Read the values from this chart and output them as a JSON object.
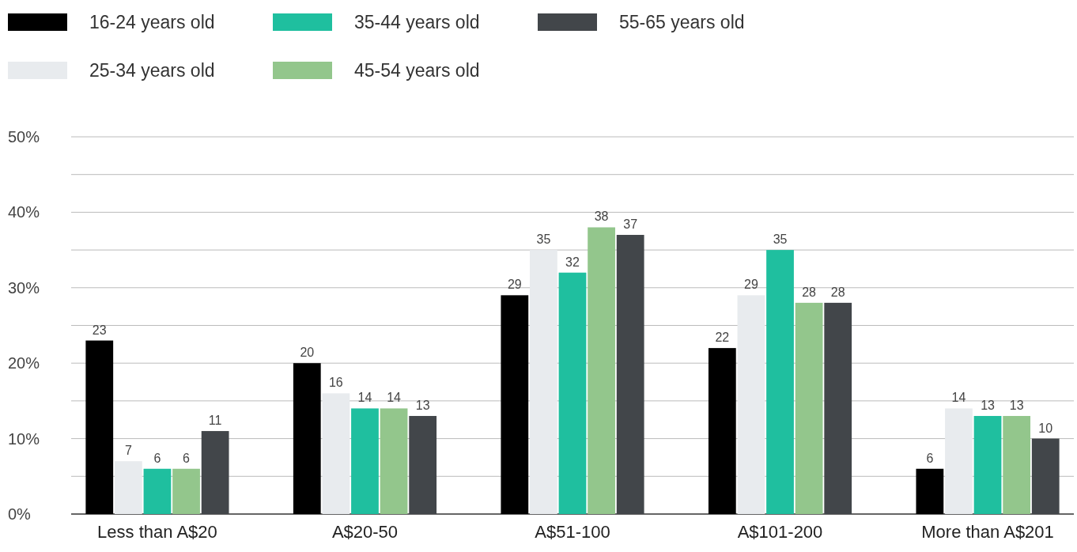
{
  "chart_data": {
    "type": "bar",
    "categories": [
      "Less than A$20",
      "A$20-50",
      "A$51-100",
      "A$101-200",
      "More than A$201"
    ],
    "series": [
      {
        "name": "16-24 years old",
        "color": "#000000",
        "values": [
          23,
          20,
          29,
          22,
          6
        ]
      },
      {
        "name": "25-34 years old",
        "color": "#e8ebee",
        "values": [
          7,
          16,
          35,
          29,
          14
        ]
      },
      {
        "name": "35-44 years old",
        "color": "#1fbf9f",
        "values": [
          6,
          14,
          32,
          35,
          13
        ]
      },
      {
        "name": "45-54 years old",
        "color": "#93c68c",
        "values": [
          6,
          14,
          38,
          28,
          13
        ]
      },
      {
        "name": "55-65 years old",
        "color": "#42464a",
        "values": [
          11,
          13,
          37,
          28,
          10
        ]
      }
    ],
    "ylim": [
      0,
      50
    ],
    "yticks": [
      {
        "value": 0,
        "label": "0%"
      },
      {
        "value": 5,
        "label": null
      },
      {
        "value": 10,
        "label": "10%"
      },
      {
        "value": 15,
        "label": null
      },
      {
        "value": 20,
        "label": "20%"
      },
      {
        "value": 25,
        "label": null
      },
      {
        "value": 30,
        "label": "30%"
      },
      {
        "value": 35,
        "label": null
      },
      {
        "value": 40,
        "label": "40%"
      },
      {
        "value": 45,
        "label": null
      },
      {
        "value": 50,
        "label": "50%"
      }
    ],
    "grid": "y",
    "legend": "top left",
    "data_labels": true
  }
}
